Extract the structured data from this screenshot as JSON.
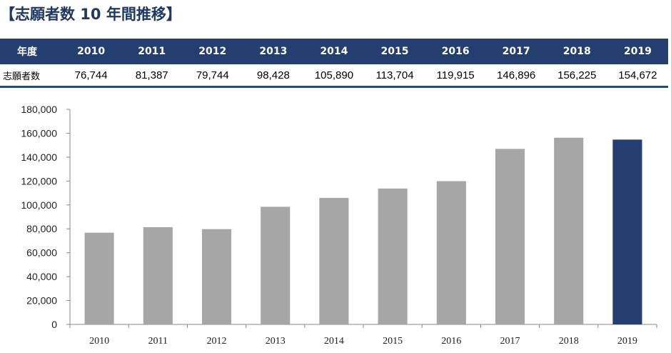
{
  "title": "【志願者数 10 年間推移】",
  "table": {
    "row_header_label": "年度",
    "value_row_label": "志願者数",
    "years": [
      "2010",
      "2011",
      "2012",
      "2013",
      "2014",
      "2015",
      "2016",
      "2017",
      "2018",
      "2019"
    ],
    "values_text": [
      "76,744",
      "81,387",
      "79,744",
      "98,428",
      "105,890",
      "113,704",
      "119,915",
      "146,896",
      "156,225",
      "154,672"
    ]
  },
  "chart_data": {
    "type": "bar",
    "title": "",
    "xlabel": "",
    "ylabel": "",
    "categories": [
      "2010",
      "2011",
      "2012",
      "2013",
      "2014",
      "2015",
      "2016",
      "2017",
      "2018",
      "2019"
    ],
    "values": [
      76744,
      81387,
      79744,
      98428,
      105890,
      113704,
      119915,
      146896,
      156225,
      154672
    ],
    "ylim": [
      0,
      180000
    ],
    "yticks": [
      0,
      20000,
      40000,
      60000,
      80000,
      100000,
      120000,
      140000,
      160000,
      180000
    ],
    "ytick_labels": [
      "0",
      "20,000",
      "40,000",
      "60,000",
      "80,000",
      "100,000",
      "120,000",
      "140,000",
      "160,000",
      "180,000"
    ],
    "bar_color": "#a6a6a6",
    "highlight_color": "#243f6f",
    "highlight_index": 9,
    "grid": false,
    "legend": "none"
  }
}
